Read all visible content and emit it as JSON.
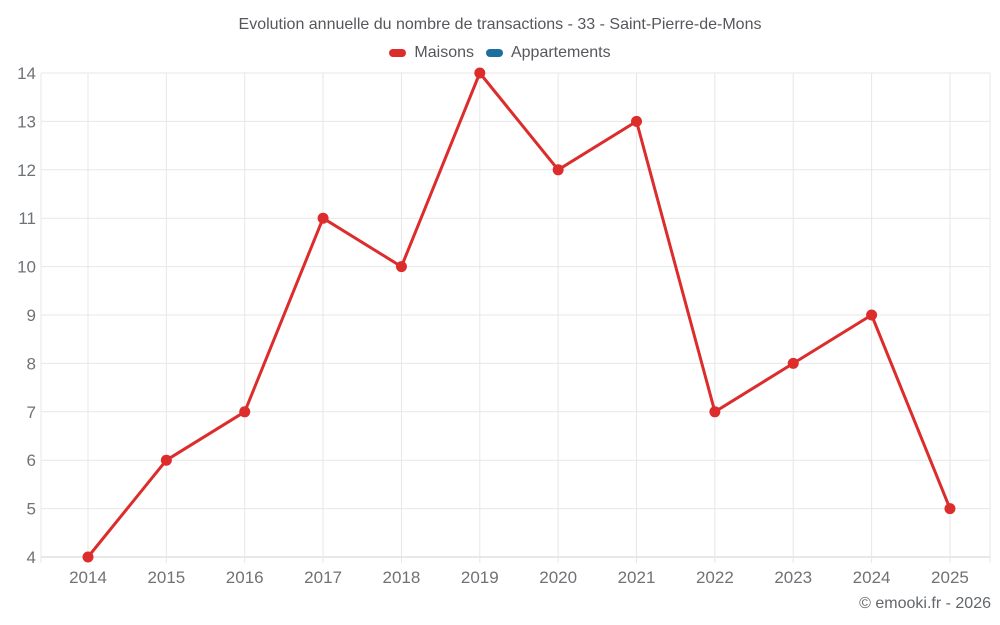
{
  "header": {
    "title": "Evolution annuelle du nombre de transactions - 33 - Saint-Pierre-de-Mons"
  },
  "legend": {
    "items": [
      {
        "label": "Maisons",
        "color": "#dc2c2c"
      },
      {
        "label": "Appartements",
        "color": "#1c6f9f"
      }
    ]
  },
  "footer": {
    "credit": "© emooki.fr - 2026"
  },
  "chart_data": {
    "type": "line",
    "title": "Evolution annuelle du nombre de transactions - 33 - Saint-Pierre-de-Mons",
    "x": [
      2014,
      2015,
      2016,
      2017,
      2018,
      2019,
      2020,
      2021,
      2022,
      2023,
      2024,
      2025
    ],
    "series": [
      {
        "name": "Maisons",
        "color": "#dc2c2c",
        "values": [
          4,
          6,
          7,
          11,
          10,
          14,
          12,
          13,
          7,
          8,
          9,
          5
        ]
      },
      {
        "name": "Appartements",
        "color": "#1c6f9f",
        "values": []
      }
    ],
    "y_ticks": [
      4,
      5,
      6,
      7,
      8,
      9,
      10,
      11,
      12,
      13,
      14
    ],
    "ylim": [
      4,
      14
    ],
    "xlabel": "",
    "ylabel": "",
    "grid": true,
    "legend_position": "top",
    "colors": {
      "gridline": "#e7e7e9",
      "axis_line": "#cfd0d1",
      "tick_text": "#6f7276"
    }
  }
}
